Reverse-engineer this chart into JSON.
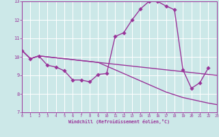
{
  "xlabel": "Windchill (Refroidissement éolien,°C)",
  "background_color": "#cce8e8",
  "grid_color": "#ffffff",
  "line_color": "#993399",
  "xlim": [
    0,
    23
  ],
  "ylim": [
    7,
    13
  ],
  "xticks": [
    0,
    1,
    2,
    3,
    4,
    5,
    6,
    7,
    8,
    9,
    10,
    11,
    12,
    13,
    14,
    15,
    16,
    17,
    18,
    19,
    20,
    21,
    22,
    23
  ],
  "yticks": [
    7,
    8,
    9,
    10,
    11,
    12,
    13
  ],
  "series1_x": [
    0,
    1,
    2,
    3,
    4,
    5,
    6,
    7,
    8,
    9,
    10,
    11,
    12,
    13,
    14,
    15,
    16,
    17,
    18,
    19,
    20,
    21,
    22
  ],
  "series1_y": [
    10.35,
    9.9,
    10.05,
    9.55,
    9.45,
    9.25,
    8.75,
    8.75,
    8.65,
    9.05,
    9.1,
    11.1,
    11.3,
    12.0,
    12.6,
    13.0,
    13.0,
    12.75,
    12.55,
    9.3,
    8.3,
    8.6,
    9.4
  ],
  "series2_x": [
    0,
    1,
    2,
    3,
    4,
    5,
    6,
    7,
    8,
    9,
    10,
    11,
    12,
    13,
    14,
    15,
    16,
    17,
    18,
    19,
    20,
    21,
    22,
    23
  ],
  "series2_y": [
    10.35,
    9.9,
    10.05,
    10.0,
    9.95,
    9.9,
    9.85,
    9.8,
    9.75,
    9.7,
    9.65,
    9.6,
    9.55,
    9.5,
    9.45,
    9.4,
    9.35,
    9.3,
    9.25,
    9.2,
    9.15,
    9.1,
    9.05,
    9.0
  ],
  "series3_x": [
    0,
    1,
    2,
    3,
    4,
    5,
    6,
    7,
    8,
    9,
    10,
    11,
    12,
    13,
    14,
    15,
    16,
    17,
    18,
    19,
    20,
    21,
    22,
    23
  ],
  "series3_y": [
    10.35,
    9.9,
    10.05,
    10.0,
    9.95,
    9.9,
    9.85,
    9.8,
    9.75,
    9.7,
    9.5,
    9.3,
    9.1,
    8.9,
    8.7,
    8.5,
    8.3,
    8.1,
    7.95,
    7.8,
    7.7,
    7.6,
    7.5,
    7.42
  ],
  "markersize": 2.8,
  "linewidth": 1.0
}
